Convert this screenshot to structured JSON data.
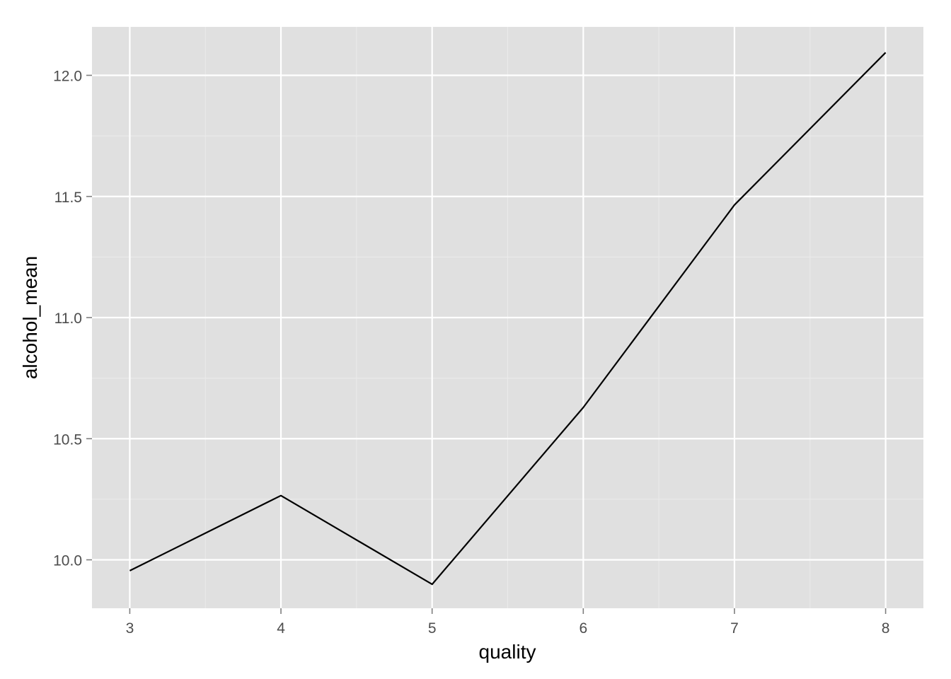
{
  "chart_data": {
    "type": "line",
    "title": "",
    "xlabel": "quality",
    "ylabel": "alcohol_mean",
    "xlim": [
      2.75,
      8.25
    ],
    "ylim": [
      9.8,
      12.2
    ],
    "x_ticks": [
      3,
      4,
      5,
      6,
      7,
      8
    ],
    "y_ticks": [
      10.0,
      10.5,
      11.0,
      11.5,
      12.0
    ],
    "y_tick_labels": [
      "10.0",
      "10.5",
      "11.0",
      "11.5",
      "12.0"
    ],
    "grid": true,
    "legend": "none",
    "line_color": "#000000",
    "panel_color": "#e0e0e0",
    "series": [
      {
        "x": [
          3,
          4,
          5,
          6,
          7,
          8
        ],
        "values": [
          9.955,
          10.265,
          9.899,
          10.629,
          11.465,
          12.094
        ]
      }
    ]
  }
}
